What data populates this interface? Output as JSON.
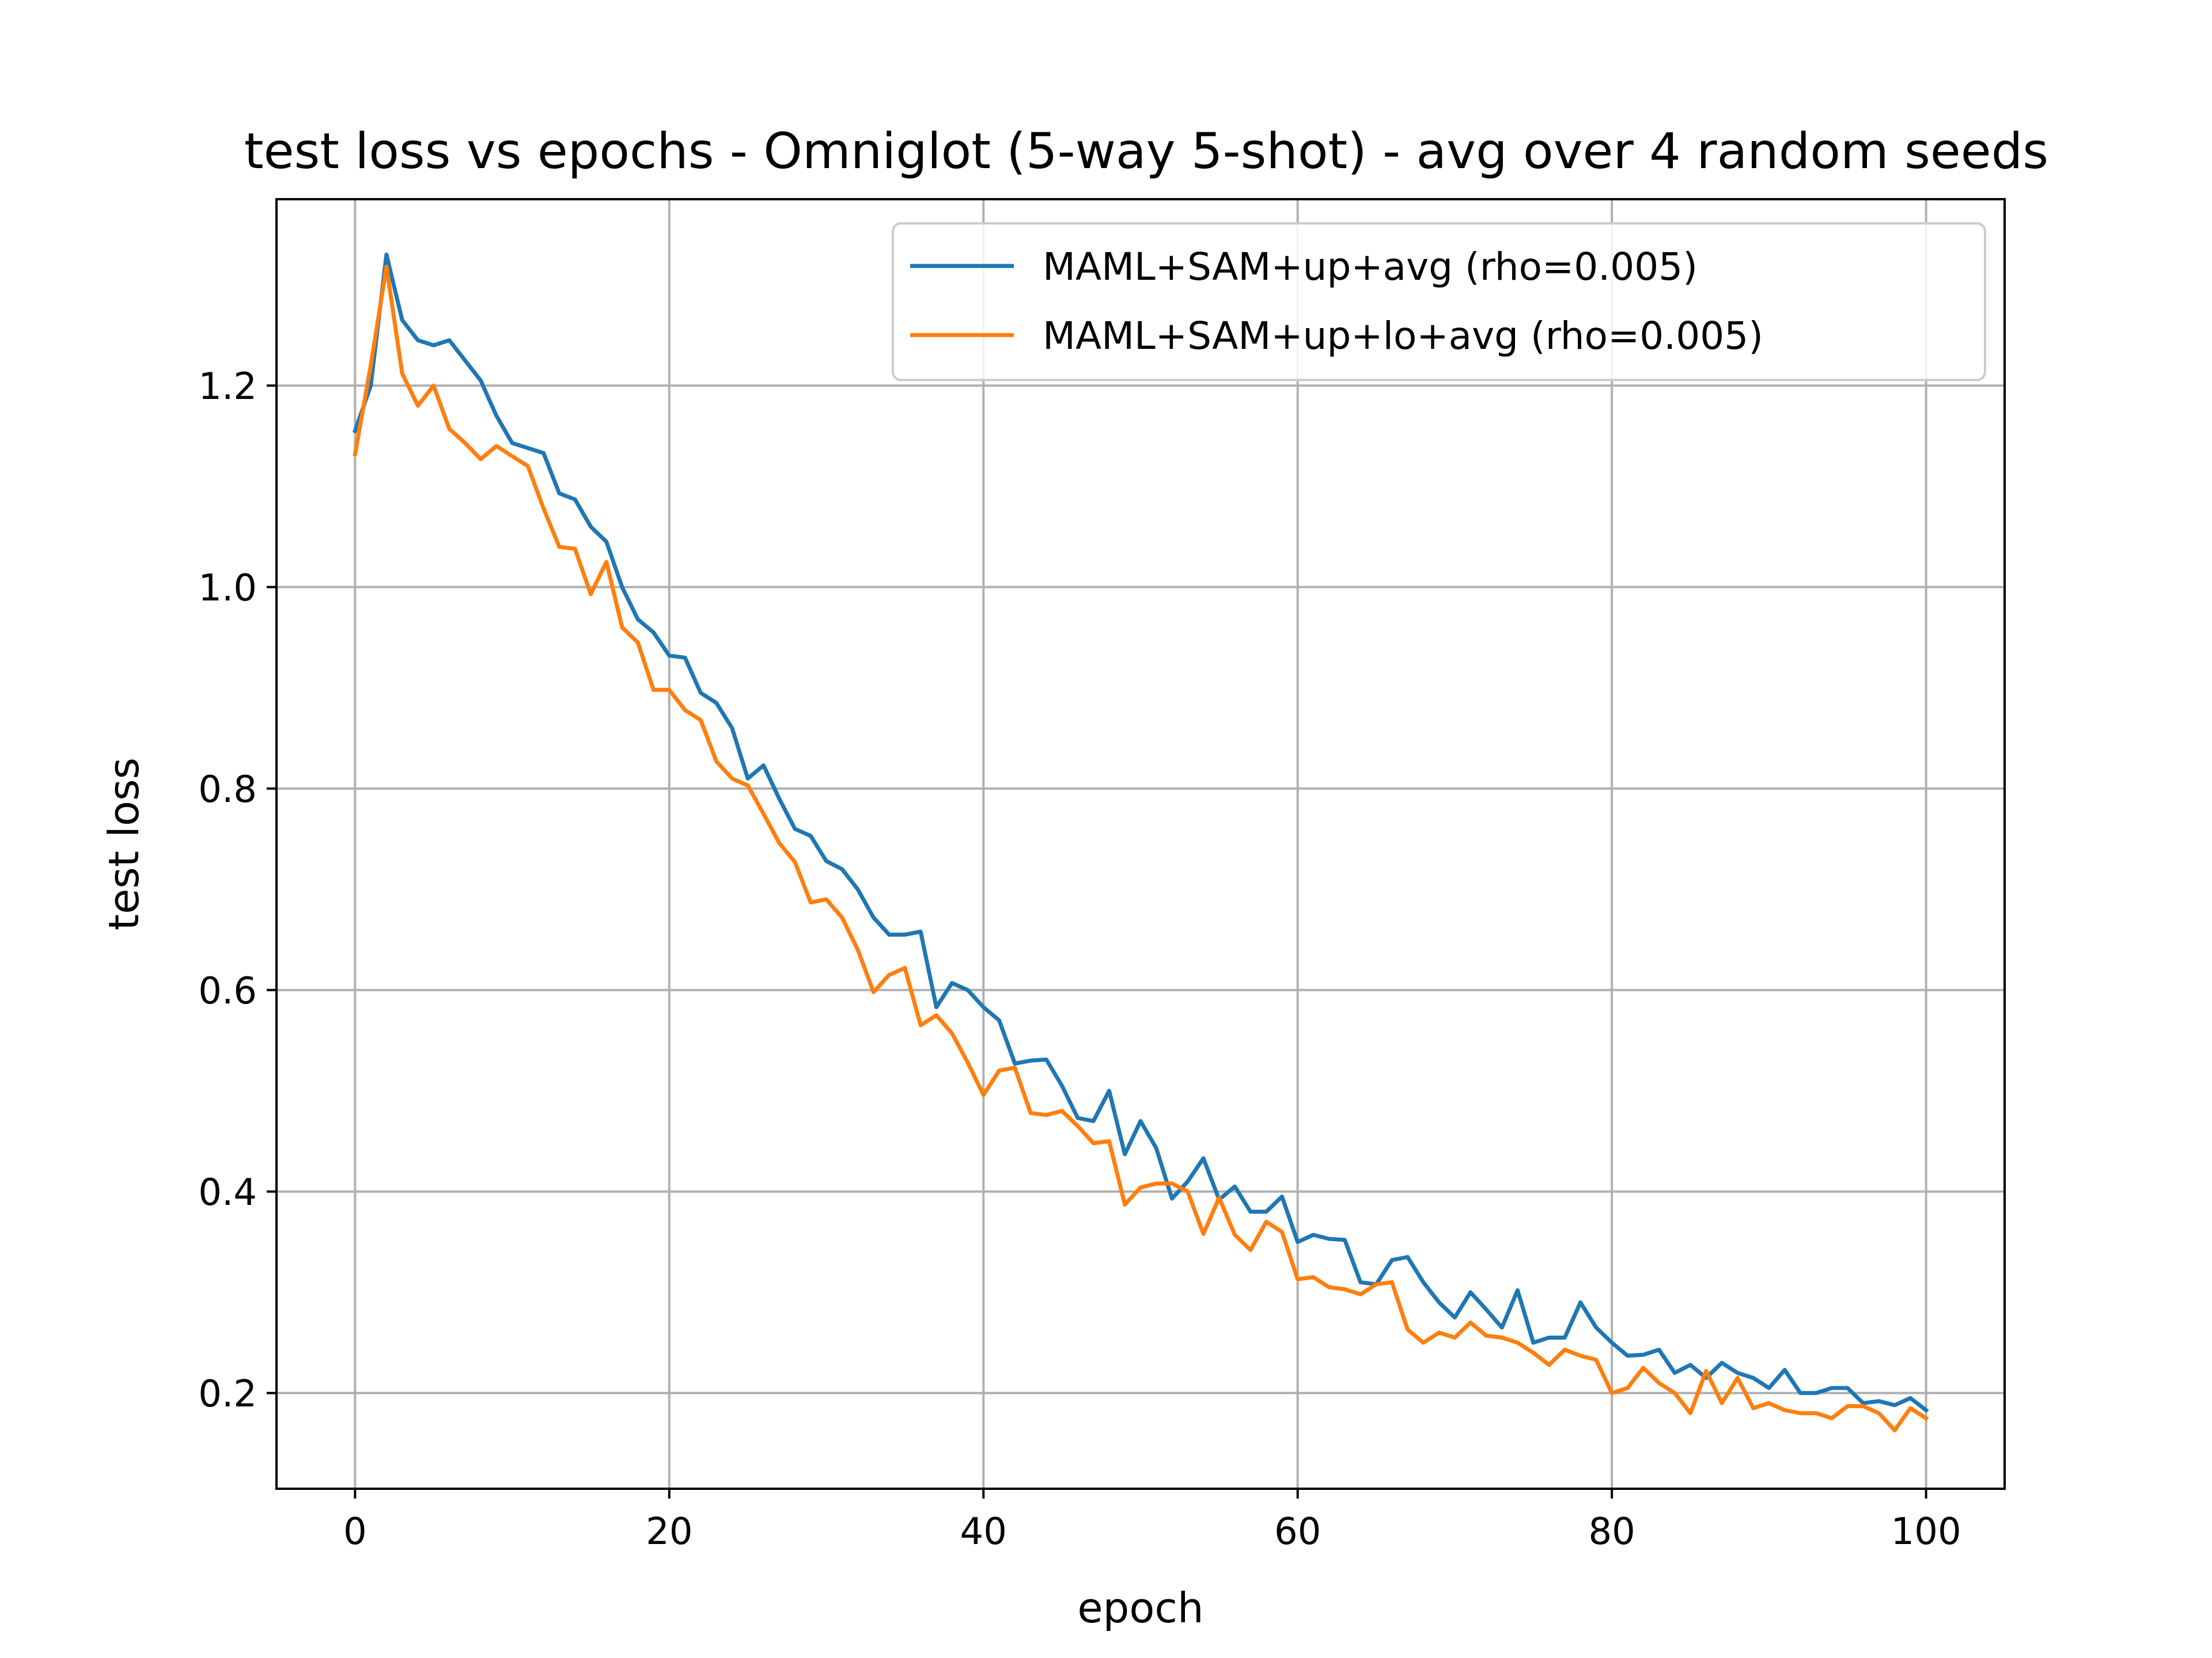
{
  "chart_data": {
    "type": "line",
    "title": "test loss vs epochs - Omniglot (5-way 5-shot) - avg over 4 random seeds",
    "xlabel": "epoch",
    "ylabel": "test loss",
    "xlim": [
      -5,
      105
    ],
    "ylim": [
      0.105,
      1.385
    ],
    "xticks": [
      0,
      20,
      40,
      60,
      80,
      100
    ],
    "yticks": [
      0.2,
      0.4,
      0.6,
      0.8,
      1.0,
      1.2
    ],
    "xtick_labels": [
      "0",
      "20",
      "40",
      "60",
      "80",
      "100"
    ],
    "ytick_labels": [
      "0.2",
      "0.4",
      "0.6",
      "0.8",
      "1.0",
      "1.2"
    ],
    "grid": true,
    "legend_position": "top-right",
    "x": [
      0,
      1,
      2,
      3,
      4,
      5,
      6,
      7,
      8,
      9,
      10,
      11,
      12,
      13,
      14,
      15,
      16,
      17,
      18,
      19,
      20,
      21,
      22,
      23,
      24,
      25,
      26,
      27,
      28,
      29,
      30,
      31,
      32,
      33,
      34,
      35,
      36,
      37,
      38,
      39,
      40,
      41,
      42,
      43,
      44,
      45,
      46,
      47,
      48,
      49,
      50,
      51,
      52,
      53,
      54,
      55,
      56,
      57,
      58,
      59,
      60,
      61,
      62,
      63,
      64,
      65,
      66,
      67,
      68,
      69,
      70,
      71,
      72,
      73,
      74,
      75,
      76,
      77,
      78,
      79,
      80,
      81,
      82,
      83,
      84,
      85,
      86,
      87,
      88,
      89,
      90,
      91,
      92,
      93,
      94,
      95,
      96,
      97,
      98,
      99,
      100
    ],
    "series": [
      {
        "name": "MAML+SAM+up+avg (rho=0.005)",
        "color": "#1f77b4",
        "values": [
          1.155,
          1.2,
          1.33,
          1.265,
          1.245,
          1.24,
          1.245,
          1.225,
          1.205,
          1.17,
          1.143,
          1.138,
          1.133,
          1.093,
          1.087,
          1.06,
          1.045,
          1.0,
          0.968,
          0.955,
          0.932,
          0.93,
          0.895,
          0.885,
          0.86,
          0.81,
          0.823,
          0.79,
          0.76,
          0.753,
          0.728,
          0.72,
          0.7,
          0.672,
          0.655,
          0.655,
          0.658,
          0.583,
          0.607,
          0.6,
          0.583,
          0.57,
          0.527,
          0.53,
          0.531,
          0.505,
          0.473,
          0.47,
          0.5,
          0.437,
          0.47,
          0.443,
          0.393,
          0.41,
          0.433,
          0.392,
          0.405,
          0.38,
          0.38,
          0.395,
          0.35,
          0.357,
          0.353,
          0.352,
          0.31,
          0.308,
          0.332,
          0.335,
          0.31,
          0.29,
          0.275,
          0.3,
          0.283,
          0.265,
          0.302,
          0.25,
          0.255,
          0.255,
          0.29,
          0.265,
          0.25,
          0.237,
          0.238,
          0.243,
          0.22,
          0.228,
          0.215,
          0.23,
          0.22,
          0.215,
          0.205,
          0.223,
          0.2,
          0.2,
          0.205,
          0.205,
          0.19,
          0.192,
          0.188,
          0.195,
          0.183
        ]
      },
      {
        "name": "MAML+SAM+up+lo+avg (rho=0.005)",
        "color": "#ff7f0e",
        "values": [
          1.132,
          1.22,
          1.318,
          1.212,
          1.18,
          1.2,
          1.157,
          1.143,
          1.127,
          1.14,
          1.13,
          1.12,
          1.078,
          1.04,
          1.038,
          0.993,
          1.025,
          0.96,
          0.945,
          0.898,
          0.898,
          0.878,
          0.868,
          0.827,
          0.81,
          0.803,
          0.775,
          0.746,
          0.727,
          0.687,
          0.69,
          0.672,
          0.64,
          0.598,
          0.615,
          0.622,
          0.565,
          0.575,
          0.557,
          0.528,
          0.496,
          0.52,
          0.523,
          0.478,
          0.476,
          0.48,
          0.465,
          0.448,
          0.45,
          0.387,
          0.404,
          0.408,
          0.408,
          0.4,
          0.358,
          0.394,
          0.357,
          0.342,
          0.37,
          0.36,
          0.313,
          0.315,
          0.305,
          0.303,
          0.298,
          0.308,
          0.31,
          0.263,
          0.25,
          0.26,
          0.255,
          0.27,
          0.257,
          0.255,
          0.25,
          0.24,
          0.228,
          0.243,
          0.237,
          0.233,
          0.2,
          0.205,
          0.225,
          0.21,
          0.2,
          0.18,
          0.222,
          0.19,
          0.215,
          0.185,
          0.19,
          0.183,
          0.18,
          0.18,
          0.175,
          0.187,
          0.187,
          0.18,
          0.163,
          0.185,
          0.175
        ]
      }
    ]
  }
}
